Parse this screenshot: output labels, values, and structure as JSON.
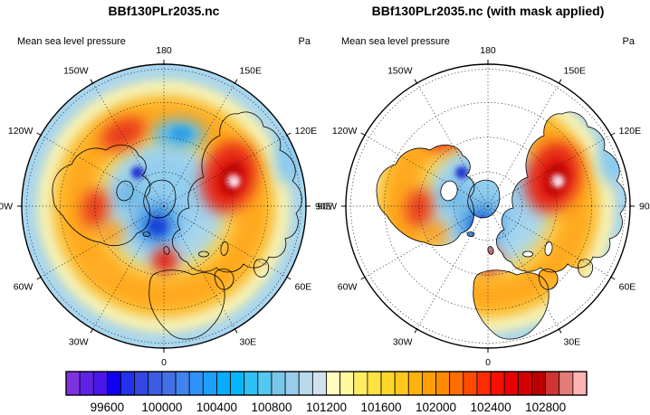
{
  "panels": [
    {
      "title": "BBf130PLr2035.nc",
      "subtitle_left": "Mean sea level pressure",
      "subtitle_right": "Pa",
      "masked": false
    },
    {
      "title": "BBf130PLr2035.nc (with mask applied)",
      "subtitle_left": "Mean sea level pressure",
      "subtitle_right": "Pa",
      "masked": true
    }
  ],
  "map": {
    "lon_labels": [
      {
        "label": "180",
        "lon": 180
      },
      {
        "label": "150W",
        "lon": -150
      },
      {
        "label": "120W",
        "lon": -120
      },
      {
        "label": "90W",
        "lon": -90
      },
      {
        "label": "60W",
        "lon": -60
      },
      {
        "label": "30W",
        "lon": -30
      },
      {
        "label": "0",
        "lon": 0
      },
      {
        "label": "30E",
        "lon": 30
      },
      {
        "label": "60E",
        "lon": 60
      },
      {
        "label": "90E",
        "lon": 90
      },
      {
        "label": "120E",
        "lon": 120
      },
      {
        "label": "150E",
        "lon": 150
      }
    ]
  },
  "colorbar": {
    "colors": [
      "#8032E1",
      "#6022E6",
      "#4A17EA",
      "#1000F0",
      "#2132EB",
      "#3346E3",
      "#3D5CE3",
      "#4470E7",
      "#4083EE",
      "#2F92F9",
      "#1C9FFF",
      "#09ACFF",
      "#06B6FD",
      "#2FC0F5",
      "#55C6EF",
      "#78C6EA",
      "#97CDE9",
      "#B8D9EC",
      "#CFE2EF",
      "#FFFCC2",
      "#FFF89F",
      "#FFEE62",
      "#FFE340",
      "#FFD62B",
      "#FFC61D",
      "#FFB30E",
      "#FF9F01",
      "#FF8A00",
      "#FF6F00",
      "#FF4B00",
      "#FC2D00",
      "#F51000",
      "#E60000",
      "#D20000",
      "#BD0000",
      "#CF3433",
      "#E37D78",
      "#FFB4B4"
    ],
    "tick_labels": [
      "99600",
      "100000",
      "100400",
      "100800",
      "101200",
      "101600",
      "102000",
      "102400",
      "102800"
    ],
    "tick_boundary_indices": [
      3,
      7,
      11,
      15,
      19,
      23,
      27,
      31,
      35
    ]
  },
  "chart_data": {
    "type": "heatmap",
    "subtype": "polar_stereographic_filled_contour_map",
    "variable": "Mean sea level pressure",
    "units": "Pa",
    "projection": "northern_hemisphere_polar_view",
    "graticule": {
      "lon_spacing_deg": 30,
      "lon_labels": [
        "180",
        "150W",
        "120W",
        "90W",
        "60W",
        "30W",
        "0",
        "30E",
        "60E",
        "90E",
        "120E",
        "150E"
      ],
      "lat_circles": 4,
      "style": "dotted"
    },
    "contour_levels_pa": {
      "min": 99300,
      "max": 103100,
      "step": 100,
      "n_fill_boxes": 38
    },
    "colorbar_tick_values_pa": [
      99600,
      100000,
      100400,
      100800,
      101200,
      101600,
      102000,
      102400,
      102800
    ],
    "panels": [
      {
        "title": "BBf130PLr2035.nc",
        "mask": "none",
        "description": "Full MSLP field: low pressure (blues ~99300-100600 Pa) over the central Arctic and a trough near the dateline; high pressure ring (oranges/reds ~102000-103100 Pa) at mid-latitudes with an intense maximum with pale pink core over Siberia, secondary maxima over northwest North America and Europe; pale blues (~100800-101300 Pa) around the outer (low-latitude) rim."
      },
      {
        "title": "BBf130PLr2035.nc (with mask applied)",
        "mask": "ocean masked out (values shown over land only, oceans white)",
        "description": "Same MSLP field shown only over land: strong Siberian high with pink core, red/orange over western North America and Europe, blues over eastern Canada, Greenland and northeast Asia, orange over the Sahara fading to pale blue toward the outer rim."
      }
    ]
  }
}
